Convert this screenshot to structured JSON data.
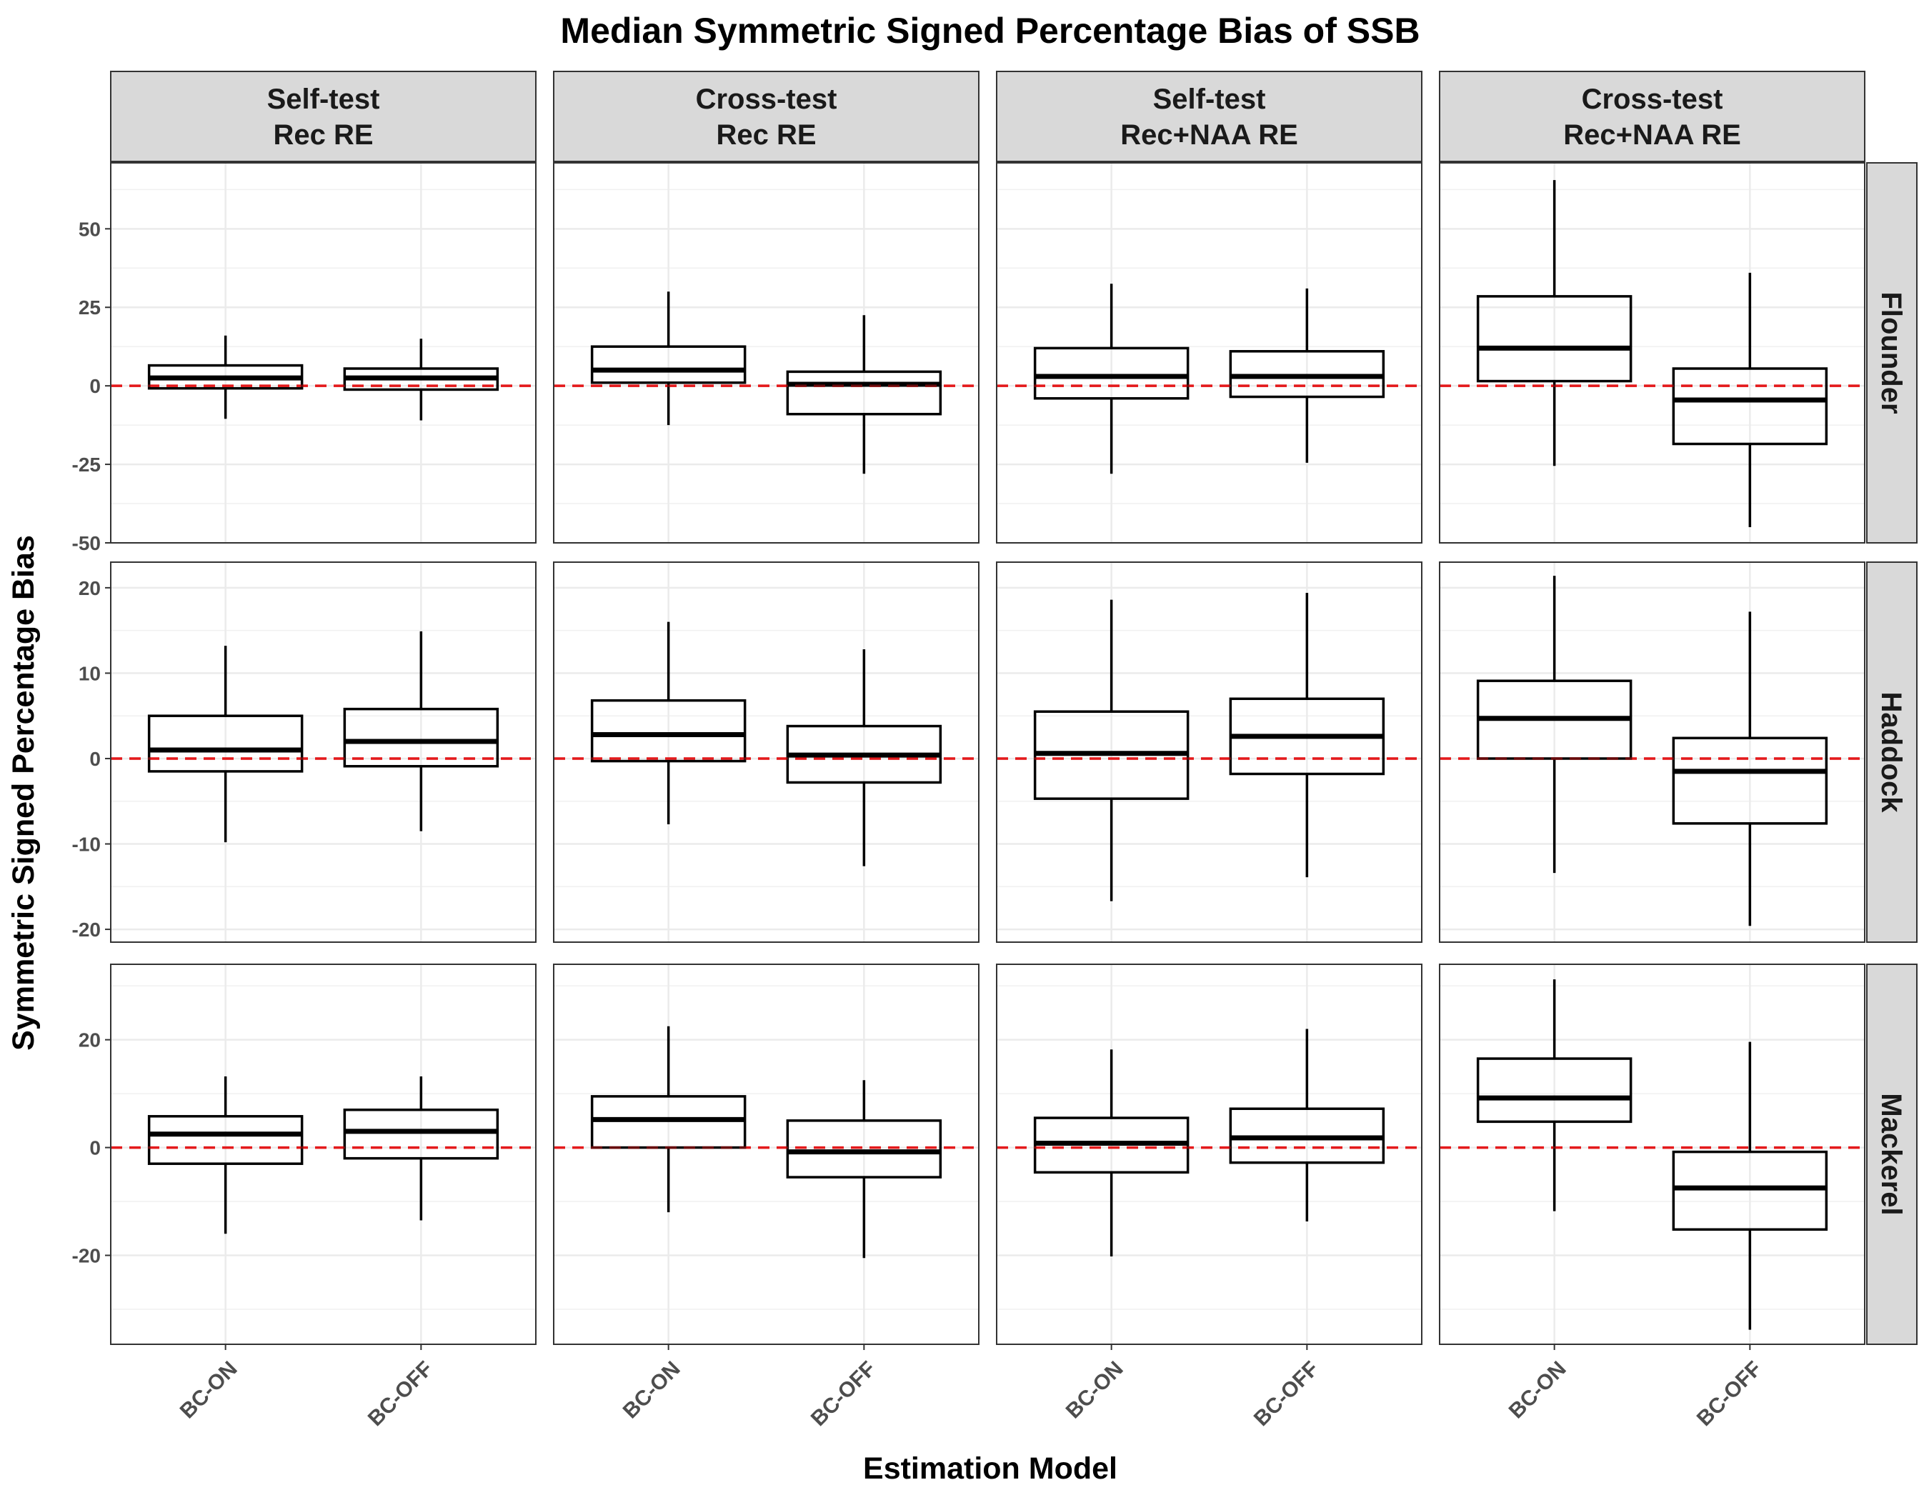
{
  "chart_data": {
    "type": "boxplot",
    "title": "Median Symmetric Signed Percentage Bias of SSB",
    "xlabel": "Estimation Model",
    "ylabel": "Symmetric Signed Percentage Bias",
    "categories": [
      "BC-ON",
      "BC-OFF"
    ],
    "columns": [
      {
        "line1": "Self-test",
        "line2": "Rec RE"
      },
      {
        "line1": "Cross-test",
        "line2": "Rec RE"
      },
      {
        "line1": "Self-test",
        "line2": "Rec+NAA RE"
      },
      {
        "line1": "Cross-test",
        "line2": "Rec+NAA RE"
      }
    ],
    "reference_line": {
      "y": 0,
      "color": "#e41a1c",
      "style": "dashed"
    },
    "rows": [
      {
        "name": "Flounder",
        "ylim": [
          -50,
          71
        ],
        "yticks": [
          -50,
          -25,
          0,
          25,
          50
        ],
        "panels": [
          [
            {
              "category": "BC-ON",
              "lower_whisker": -10.5,
              "q1": -0.8,
              "median": 2.5,
              "q3": 6.5,
              "upper_whisker": 16
            },
            {
              "category": "BC-OFF",
              "lower_whisker": -11,
              "q1": -1.2,
              "median": 2.5,
              "q3": 5.5,
              "upper_whisker": 15
            }
          ],
          [
            {
              "category": "BC-ON",
              "lower_whisker": -12.5,
              "q1": 1,
              "median": 5,
              "q3": 12.5,
              "upper_whisker": 30
            },
            {
              "category": "BC-OFF",
              "lower_whisker": -28,
              "q1": -9,
              "median": 0.5,
              "q3": 4.5,
              "upper_whisker": 22.5
            }
          ],
          [
            {
              "category": "BC-ON",
              "lower_whisker": -28,
              "q1": -4,
              "median": 3,
              "q3": 12,
              "upper_whisker": 32.5
            },
            {
              "category": "BC-OFF",
              "lower_whisker": -24.5,
              "q1": -3.5,
              "median": 3,
              "q3": 11,
              "upper_whisker": 31
            }
          ],
          [
            {
              "category": "BC-ON",
              "lower_whisker": -25.5,
              "q1": 1.5,
              "median": 12,
              "q3": 28.5,
              "upper_whisker": 65.5
            },
            {
              "category": "BC-OFF",
              "lower_whisker": -45,
              "q1": -18.5,
              "median": -4.5,
              "q3": 5.5,
              "upper_whisker": 36
            }
          ]
        ]
      },
      {
        "name": "Haddock",
        "ylim": [
          -21.5,
          23
        ],
        "yticks": [
          -20,
          -10,
          0,
          10,
          20
        ],
        "panels": [
          [
            {
              "category": "BC-ON",
              "lower_whisker": -9.8,
              "q1": -1.5,
              "median": 1,
              "q3": 5,
              "upper_whisker": 13.2
            },
            {
              "category": "BC-OFF",
              "lower_whisker": -8.5,
              "q1": -0.9,
              "median": 2,
              "q3": 5.8,
              "upper_whisker": 14.9
            }
          ],
          [
            {
              "category": "BC-ON",
              "lower_whisker": -7.7,
              "q1": -0.3,
              "median": 2.8,
              "q3": 6.8,
              "upper_whisker": 16
            },
            {
              "category": "BC-OFF",
              "lower_whisker": -12.6,
              "q1": -2.8,
              "median": 0.4,
              "q3": 3.8,
              "upper_whisker": 12.8
            }
          ],
          [
            {
              "category": "BC-ON",
              "lower_whisker": -16.7,
              "q1": -4.7,
              "median": 0.6,
              "q3": 5.5,
              "upper_whisker": 18.6
            },
            {
              "category": "BC-OFF",
              "lower_whisker": -13.9,
              "q1": -1.8,
              "median": 2.6,
              "q3": 7,
              "upper_whisker": 19.4
            }
          ],
          [
            {
              "category": "BC-ON",
              "lower_whisker": -13.4,
              "q1": 0,
              "median": 4.7,
              "q3": 9.1,
              "upper_whisker": 21.4
            },
            {
              "category": "BC-OFF",
              "lower_whisker": -19.6,
              "q1": -7.6,
              "median": -1.5,
              "q3": 2.4,
              "upper_whisker": 17.2
            }
          ]
        ]
      },
      {
        "name": "Mackerel",
        "ylim": [
          -36.5,
          34
        ],
        "yticks": [
          -20,
          0,
          20
        ],
        "panels": [
          [
            {
              "category": "BC-ON",
              "lower_whisker": -16,
              "q1": -3,
              "median": 2.5,
              "q3": 5.8,
              "upper_whisker": 13.2
            },
            {
              "category": "BC-OFF",
              "lower_whisker": -13.5,
              "q1": -2,
              "median": 3,
              "q3": 7,
              "upper_whisker": 13.2
            }
          ],
          [
            {
              "category": "BC-ON",
              "lower_whisker": -12,
              "q1": 0,
              "median": 5.2,
              "q3": 9.5,
              "upper_whisker": 22.5
            },
            {
              "category": "BC-OFF",
              "lower_whisker": -20.5,
              "q1": -5.5,
              "median": -0.8,
              "q3": 5,
              "upper_whisker": 12.5
            }
          ],
          [
            {
              "category": "BC-ON",
              "lower_whisker": -20.2,
              "q1": -4.6,
              "median": 0.8,
              "q3": 5.5,
              "upper_whisker": 18.2
            },
            {
              "category": "BC-OFF",
              "lower_whisker": -13.7,
              "q1": -2.8,
              "median": 1.8,
              "q3": 7.2,
              "upper_whisker": 22
            }
          ],
          [
            {
              "category": "BC-ON",
              "lower_whisker": -11.8,
              "q1": 4.8,
              "median": 9.2,
              "q3": 16.5,
              "upper_whisker": 31.2
            },
            {
              "category": "BC-OFF",
              "lower_whisker": -33.8,
              "q1": -15.2,
              "median": -7.5,
              "q3": -0.8,
              "upper_whisker": 19.6
            }
          ]
        ]
      }
    ]
  }
}
